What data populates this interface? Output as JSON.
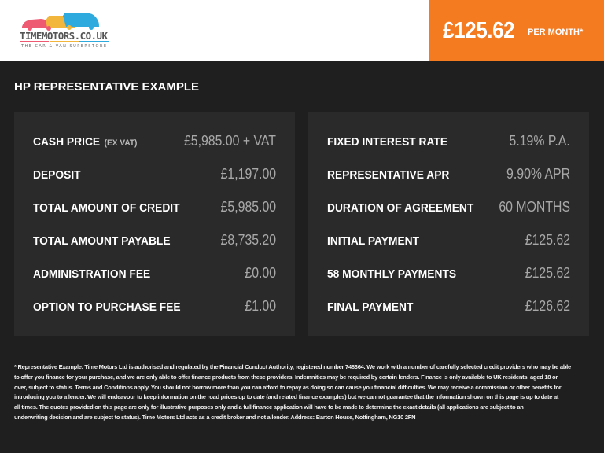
{
  "brand": {
    "logo_text": "TIMEMOTORS.CO.UK",
    "tagline": "THE CAR & VAN SUPERSTORE",
    "accent": "#f47b20"
  },
  "monthly": {
    "price": "£125.62",
    "suffix": "PER MONTH*"
  },
  "title": "HP REPRESENTATIVE EXAMPLE",
  "left": [
    {
      "label": "CASH PRICE",
      "sub": "(EX VAT)",
      "value": "£5,985.00 + VAT"
    },
    {
      "label": "DEPOSIT",
      "value": "£1,197.00"
    },
    {
      "label": "TOTAL AMOUNT OF CREDIT",
      "value": "£5,985.00"
    },
    {
      "label": "TOTAL AMOUNT PAYABLE",
      "value": "£8,735.20"
    },
    {
      "label": "ADMINISTRATION FEE",
      "value": "£0.00"
    },
    {
      "label": "OPTION TO PURCHASE FEE",
      "value": "£1.00"
    }
  ],
  "right": [
    {
      "label": "FIXED INTEREST RATE",
      "value": "5.19% P.A."
    },
    {
      "label": "REPRESENTATIVE APR",
      "value": "9.90% APR"
    },
    {
      "label": "DURATION OF AGREEMENT",
      "value": "60 MONTHS"
    },
    {
      "label": "INITIAL PAYMENT",
      "value": "£125.62"
    },
    {
      "label": "58 MONTHLY PAYMENTS",
      "value": "£125.62"
    },
    {
      "label": "FINAL PAYMENT",
      "value": "£126.62"
    }
  ],
  "disclaimer": [
    "* Representative Example. Time Motors Ltd is authorised and regulated by the Financial Conduct Authority, registered number 748364. We work with a number of carefully selected credit providers who may be able",
    "to offer you finance for your purchase, and we are only able to offer finance products from these providers. Indemnities may be required by certain lenders. Finance is only available to UK residents, aged 18 or",
    "over, subject to status. Terms and Conditions apply. You should not borrow more than you can afford to repay as doing so can cause you financial difficulties. We may receive a commission or other benefits for",
    "introducing you to a lender. We will endeavour to keep information on the road prices up to date (and related finance examples) but we cannot guarantee that the information shown on this page is up to date at",
    "all times. The quotes provided on this page are only for illustrative purposes only and a full finance application will have to be made to determine the exact details (all applications are subject to an",
    "underwriting decision and are subject to status). Time Motors Ltd acts as a credit broker and not a lender. Address: Barton House, Nottingham, NG10 2FN"
  ]
}
